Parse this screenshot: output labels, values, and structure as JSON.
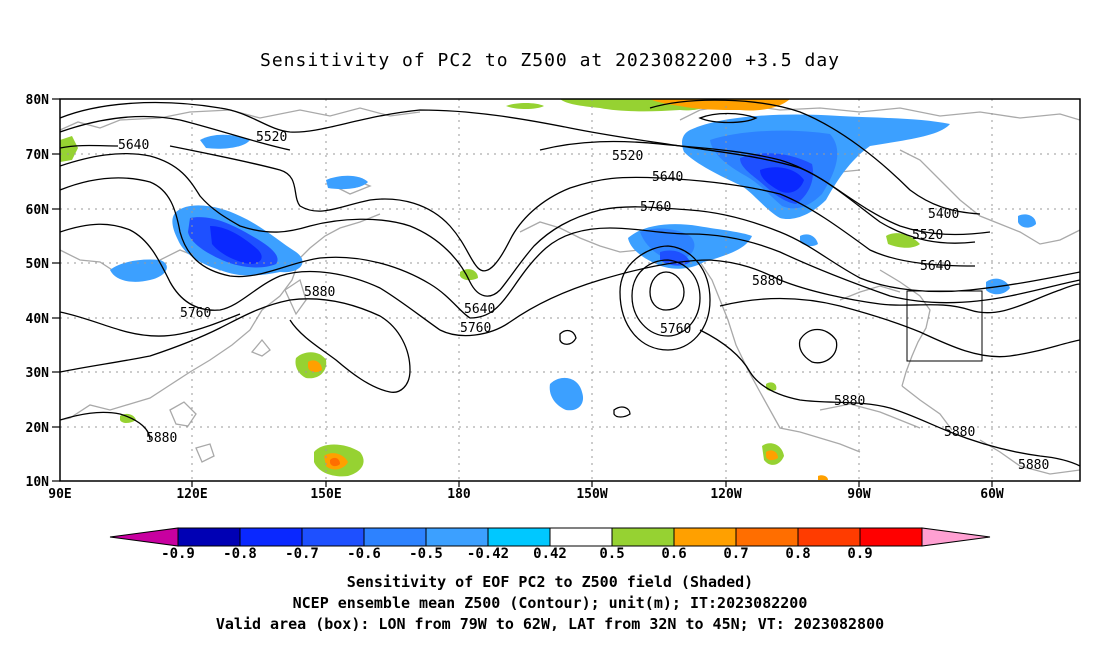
{
  "title": "Sensitivity of PC2 to Z500 at 2023082200 +3.5 day",
  "map": {
    "lat_labels": [
      "80N",
      "70N",
      "60N",
      "50N",
      "40N",
      "30N",
      "20N",
      "10N"
    ],
    "lon_labels": [
      "90E",
      "120E",
      "150E",
      "180",
      "150W",
      "120W",
      "90W",
      "60W"
    ],
    "contour_labels": [
      {
        "id": "c1",
        "text": "5640"
      },
      {
        "id": "c2",
        "text": "5520"
      },
      {
        "id": "c3",
        "text": "5520"
      },
      {
        "id": "c4",
        "text": "5640"
      },
      {
        "id": "c5",
        "text": "5760"
      },
      {
        "id": "c6",
        "text": "5400"
      },
      {
        "id": "c7",
        "text": "5520"
      },
      {
        "id": "c8",
        "text": "5640"
      },
      {
        "id": "c9",
        "text": "5880"
      },
      {
        "id": "c10",
        "text": "5880"
      },
      {
        "id": "c11",
        "text": "5760"
      },
      {
        "id": "c12",
        "text": "5640"
      },
      {
        "id": "c13",
        "text": "5760"
      },
      {
        "id": "c14",
        "text": "5760"
      },
      {
        "id": "c15",
        "text": "5880"
      },
      {
        "id": "c16",
        "text": "5880"
      },
      {
        "id": "c17",
        "text": "5880"
      },
      {
        "id": "c18",
        "text": "5880"
      }
    ],
    "valid_box": {
      "lon_from": "79W",
      "lon_to": "62W",
      "lat_from": "32N",
      "lat_to": "45N"
    }
  },
  "colorbar": {
    "labels": [
      "-0.9",
      "-0.8",
      "-0.7",
      "-0.6",
      "-0.5",
      "-0.42",
      "0.42",
      "0.5",
      "0.6",
      "0.7",
      "0.8",
      "0.9"
    ],
    "colors": [
      "#0000b4",
      "#0a28ff",
      "#1e50ff",
      "#2d82ff",
      "#3ca0ff",
      "#00c8ff",
      "#ffffff",
      "#96d232",
      "#ffa000",
      "#ff6e00",
      "#ff3c00",
      "#ff0000"
    ],
    "low_extend_color": "#c800a0",
    "high_extend_color": "#ffa0d2"
  },
  "captions": {
    "line1": "Sensitivity of EOF PC2 to Z500 field (Shaded)",
    "line2": "NCEP ensemble mean Z500 (Contour); unit(m); IT:2023082200",
    "line3": "Valid area (box): LON from 79W to 62W, LAT from 32N to 45N; VT: 2023082800"
  }
}
